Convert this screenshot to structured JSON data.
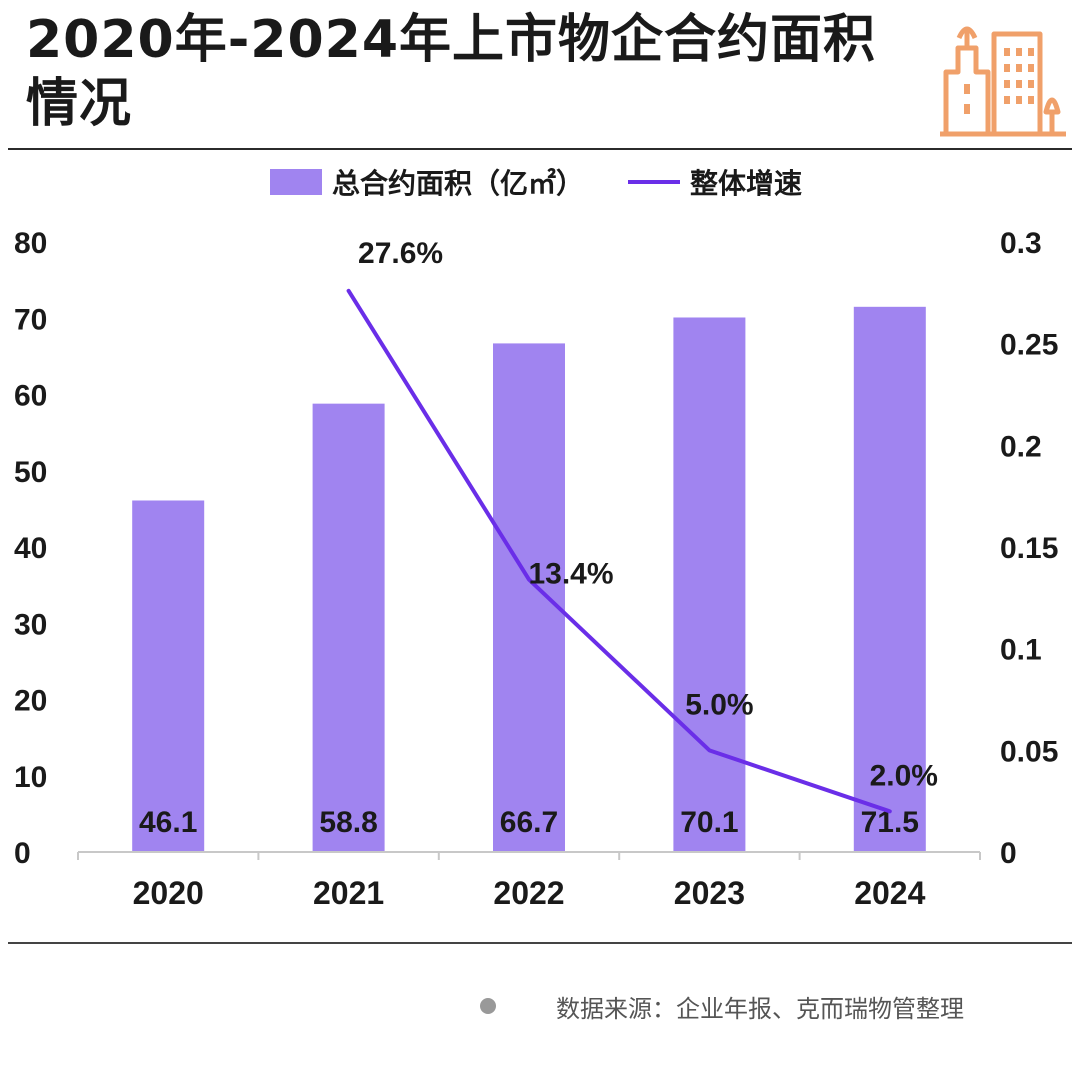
{
  "title": "2020年-2024年上市物企合约面积情况",
  "source": "数据来源：企业年报、克而瑞物管整理",
  "colors": {
    "bar": "#a084f0",
    "line": "#6a2ee8",
    "accent": "#f0a06a"
  },
  "chart_data": {
    "type": "bar",
    "categories": [
      "2020",
      "2021",
      "2022",
      "2023",
      "2024"
    ],
    "series": [
      {
        "name": "总合约面积（亿㎡）",
        "type": "bar",
        "axis": "left",
        "values": [
          46.1,
          58.8,
          66.7,
          70.1,
          71.5
        ],
        "labels": [
          "46.1",
          "58.8",
          "66.7",
          "70.1",
          "71.5"
        ]
      },
      {
        "name": "整体增速",
        "type": "line",
        "axis": "right",
        "values": [
          null,
          0.276,
          0.134,
          0.05,
          0.02
        ],
        "labels": [
          "",
          "27.6%",
          "13.4%",
          "5.0%",
          "2.0%"
        ]
      }
    ],
    "y_left": {
      "min": 0,
      "max": 80,
      "ticks": [
        "0",
        "10",
        "20",
        "30",
        "40",
        "50",
        "60",
        "70",
        "80"
      ]
    },
    "y_right": {
      "min": 0,
      "max": 0.3,
      "ticks": [
        "0",
        "0.05",
        "0.1",
        "0.15",
        "0.2",
        "0.25",
        "0.3"
      ]
    },
    "legend_position": "top-center",
    "grid": false
  }
}
